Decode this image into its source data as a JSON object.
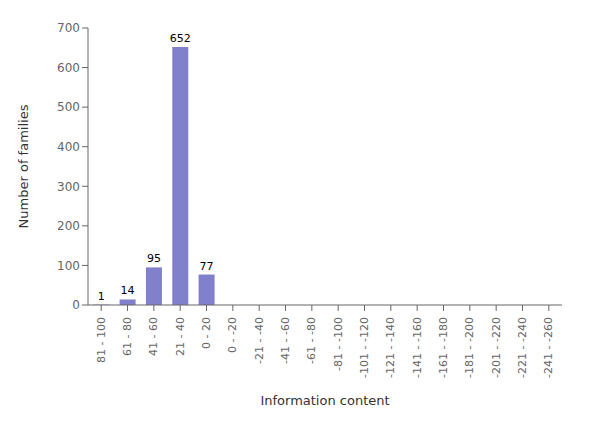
{
  "chart_data": {
    "type": "bar",
    "categories": [
      "81 - 100",
      "61 - 80",
      "41 - 60",
      "21 - 40",
      "0 - 20",
      "0 - -20",
      "-21 - -40",
      "-41 - -60",
      "-61 - -80",
      "-81 - -100",
      "-101 - -120",
      "-121 - -140",
      "-141 - -160",
      "-161 - -180",
      "-181 - -200",
      "-201 - -220",
      "-221 - -240",
      "-241 - -260"
    ],
    "values": [
      1,
      14,
      95,
      652,
      77,
      0,
      0,
      0,
      0,
      0,
      0,
      0,
      0,
      0,
      0,
      0,
      0,
      0
    ],
    "color": "#8080cc",
    "xlabel": "Information content",
    "ylabel": "Number  of  families",
    "ylim": [
      0,
      700
    ],
    "yticks": [
      0,
      100,
      200,
      300,
      400,
      500,
      600,
      700
    ],
    "grid": false,
    "data_labels": true
  }
}
